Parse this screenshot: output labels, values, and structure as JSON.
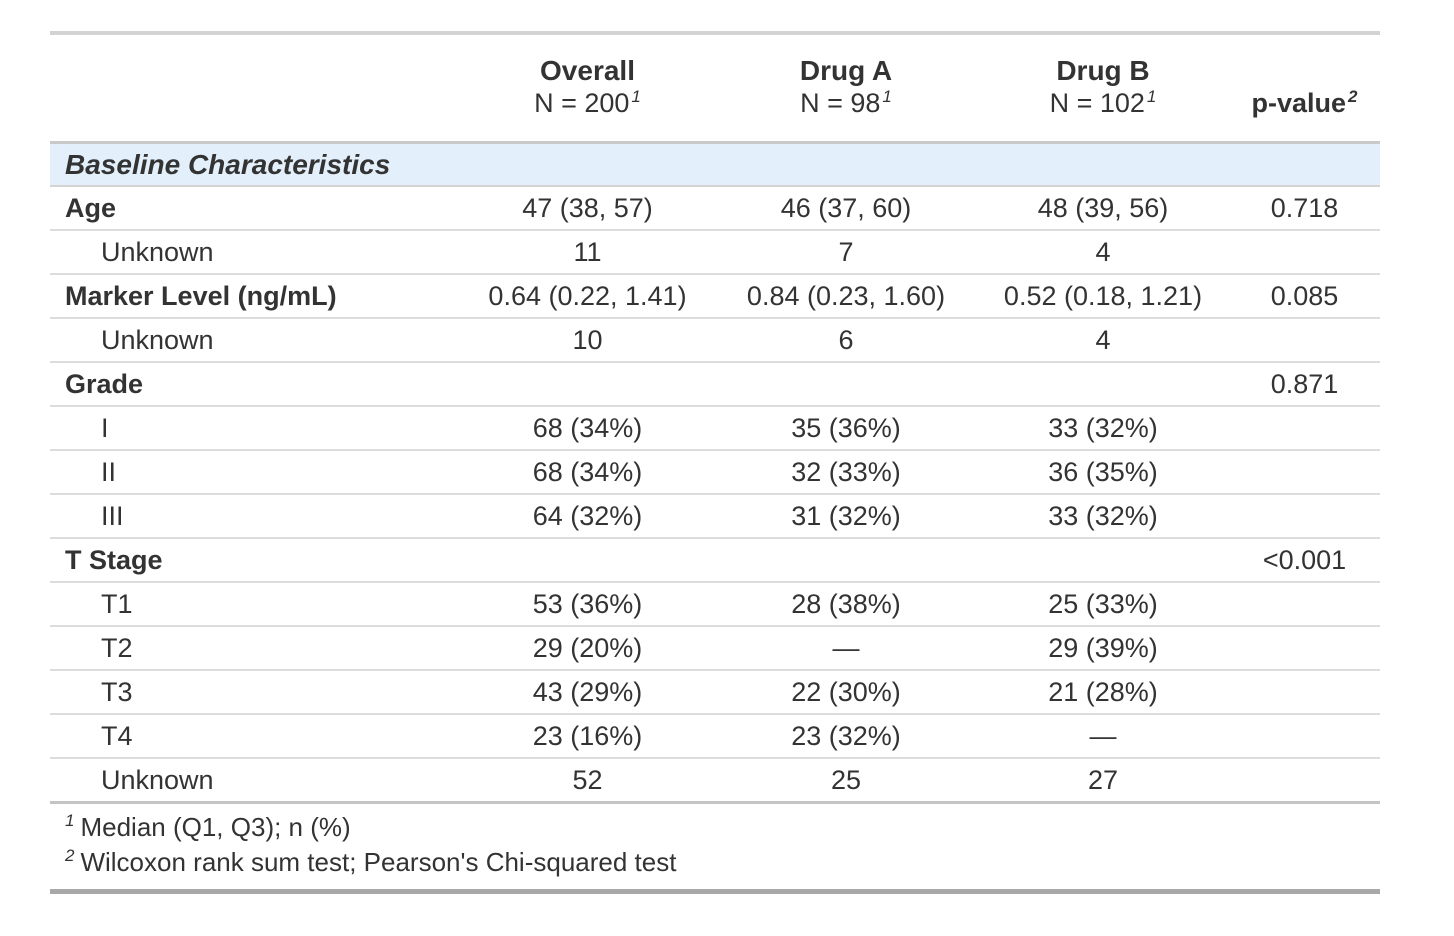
{
  "chart_data": {
    "type": "table",
    "columns": [
      {
        "label": "",
        "sublabel": "",
        "footnote_mark": ""
      },
      {
        "label": "Overall",
        "sublabel": "N = 200",
        "footnote_mark": "1"
      },
      {
        "label": "Drug A",
        "sublabel": "N = 98",
        "footnote_mark": "1"
      },
      {
        "label": "Drug B",
        "sublabel": "N = 102",
        "footnote_mark": "1"
      },
      {
        "label": "p-value",
        "sublabel": "",
        "footnote_mark": "2"
      }
    ],
    "group_header": "Baseline Characteristics",
    "rows": [
      {
        "type": "variable",
        "label": "Age",
        "overall": "47 (38, 57)",
        "drug_a": "46 (37, 60)",
        "drug_b": "48 (39, 56)",
        "p_value": "0.718"
      },
      {
        "type": "level",
        "label": "Unknown",
        "overall": "11",
        "drug_a": "7",
        "drug_b": "4",
        "p_value": ""
      },
      {
        "type": "variable",
        "label": "Marker Level (ng/mL)",
        "overall": "0.64 (0.22, 1.41)",
        "drug_a": "0.84 (0.23, 1.60)",
        "drug_b": "0.52 (0.18, 1.21)",
        "p_value": "0.085"
      },
      {
        "type": "level",
        "label": "Unknown",
        "overall": "10",
        "drug_a": "6",
        "drug_b": "4",
        "p_value": ""
      },
      {
        "type": "variable",
        "label": "Grade",
        "overall": "",
        "drug_a": "",
        "drug_b": "",
        "p_value": "0.871"
      },
      {
        "type": "level",
        "label": "I",
        "overall": "68 (34%)",
        "drug_a": "35 (36%)",
        "drug_b": "33 (32%)",
        "p_value": ""
      },
      {
        "type": "level",
        "label": "II",
        "overall": "68 (34%)",
        "drug_a": "32 (33%)",
        "drug_b": "36 (35%)",
        "p_value": ""
      },
      {
        "type": "level",
        "label": "III",
        "overall": "64 (32%)",
        "drug_a": "31 (32%)",
        "drug_b": "33 (32%)",
        "p_value": ""
      },
      {
        "type": "variable",
        "label": "T Stage",
        "overall": "",
        "drug_a": "",
        "drug_b": "",
        "p_value": "<0.001"
      },
      {
        "type": "level",
        "label": "T1",
        "overall": "53 (36%)",
        "drug_a": "28 (38%)",
        "drug_b": "25 (33%)",
        "p_value": ""
      },
      {
        "type": "level",
        "label": "T2",
        "overall": "29 (20%)",
        "drug_a": "—",
        "drug_b": "29 (39%)",
        "p_value": ""
      },
      {
        "type": "level",
        "label": "T3",
        "overall": "43 (29%)",
        "drug_a": "22 (30%)",
        "drug_b": "21 (28%)",
        "p_value": ""
      },
      {
        "type": "level",
        "label": "T4",
        "overall": "23 (16%)",
        "drug_a": "23 (32%)",
        "drug_b": "—",
        "p_value": ""
      },
      {
        "type": "level",
        "label": "Unknown",
        "overall": "52",
        "drug_a": "25",
        "drug_b": "27",
        "p_value": ""
      }
    ],
    "footnotes": [
      {
        "mark": "1",
        "text": "Median (Q1, Q3); n (%)"
      },
      {
        "mark": "2",
        "text": "Wilcoxon rank sum test; Pearson's Chi-squared test"
      }
    ],
    "colors": {
      "group_row_background": "#e3f0fb",
      "text": "#333333",
      "border_bottom_dark": "#a8a8a8",
      "border_header": "#c9c9c9",
      "border_row_light": "#dcdcdc"
    },
    "layout_hints": {
      "value_alignment": "center",
      "label_alignment": "left",
      "grid": "horizontal-rules-only"
    }
  }
}
